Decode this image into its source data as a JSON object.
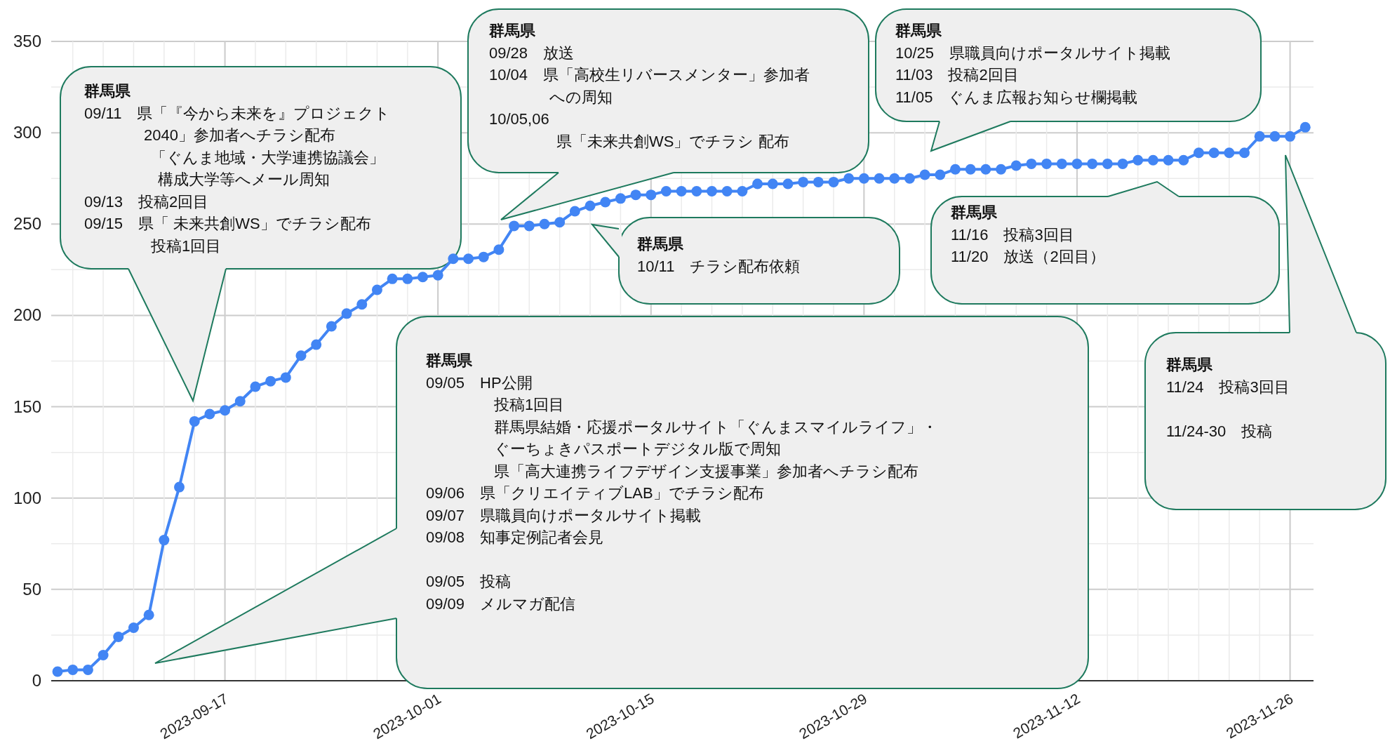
{
  "chart_data": {
    "type": "line",
    "x": [
      "2023-09-06",
      "2023-09-07",
      "2023-09-08",
      "2023-09-09",
      "2023-09-10",
      "2023-09-11",
      "2023-09-12",
      "2023-09-13",
      "2023-09-14",
      "2023-09-15",
      "2023-09-16",
      "2023-09-17",
      "2023-09-18",
      "2023-09-19",
      "2023-09-20",
      "2023-09-21",
      "2023-09-22",
      "2023-09-23",
      "2023-09-24",
      "2023-09-25",
      "2023-09-26",
      "2023-09-27",
      "2023-09-28",
      "2023-09-29",
      "2023-09-30",
      "2023-10-01",
      "2023-10-02",
      "2023-10-03",
      "2023-10-04",
      "2023-10-05",
      "2023-10-06",
      "2023-10-07",
      "2023-10-08",
      "2023-10-09",
      "2023-10-10",
      "2023-10-11",
      "2023-10-12",
      "2023-10-13",
      "2023-10-14",
      "2023-10-15",
      "2023-10-16",
      "2023-10-17",
      "2023-10-18",
      "2023-10-19",
      "2023-10-20",
      "2023-10-21",
      "2023-10-22",
      "2023-10-23",
      "2023-10-24",
      "2023-10-25",
      "2023-10-26",
      "2023-10-27",
      "2023-10-28",
      "2023-10-29",
      "2023-10-30",
      "2023-10-31",
      "2023-11-01",
      "2023-11-02",
      "2023-11-03",
      "2023-11-04",
      "2023-11-05",
      "2023-11-06",
      "2023-11-07",
      "2023-11-08",
      "2023-11-09",
      "2023-11-10",
      "2023-11-11",
      "2023-11-12",
      "2023-11-13",
      "2023-11-14",
      "2023-11-15",
      "2023-11-16",
      "2023-11-17",
      "2023-11-18",
      "2023-11-19",
      "2023-11-20",
      "2023-11-21",
      "2023-11-22",
      "2023-11-23",
      "2023-11-24",
      "2023-11-25",
      "2023-11-26",
      "2023-11-27"
    ],
    "series": [
      {
        "color": "#4285f4",
        "values": [
          5,
          6,
          6,
          14,
          24,
          29,
          36,
          77,
          106,
          142,
          146,
          148,
          153,
          161,
          164,
          166,
          178,
          184,
          194,
          201,
          206,
          214,
          220,
          220,
          221,
          222,
          231,
          231,
          232,
          236,
          249,
          249,
          250,
          251,
          257,
          260,
          262,
          264,
          266,
          266,
          268,
          268,
          268,
          268,
          268,
          268,
          272,
          272,
          272,
          273,
          273,
          273,
          275,
          275,
          275,
          275,
          275,
          277,
          277,
          280,
          280,
          280,
          280,
          282,
          283,
          283,
          283,
          283,
          283,
          283,
          283,
          285,
          285,
          285,
          285,
          289,
          289,
          289,
          289,
          298,
          298,
          298,
          303
        ]
      }
    ],
    "xlim": [
      "2023-09-05T14:00",
      "2023-11-27T13:00"
    ],
    "xticks": [
      "2023-09-17",
      "2023-10-01",
      "2023-10-15",
      "2023-10-29",
      "2023-11-12",
      "2023-11-26"
    ],
    "ylim": [
      0,
      350
    ],
    "yticks": [
      0,
      50,
      100,
      150,
      200,
      250,
      300,
      350
    ],
    "grid": true,
    "marker": "circle",
    "line_style": "solid",
    "annotations": [
      "群馬県",
      "09/11　県「『今から未来を』プロジェクト",
      "2040」参加者へチラシ配布",
      "「ぐんま地域・大学連携協議会」",
      "構成大学等へメール周知",
      "09/13　投稿2回目",
      "09/15　県「 未来共創WS」でチラシ配布",
      "投稿1回目",
      "群馬県",
      "09/28　放送",
      "10/04　県「高校生リバースメンター」参加者",
      "への周知",
      "10/05,06",
      "県「未来共創WS」でチラシ 配布",
      "群馬県",
      "10/25　県職員向けポータルサイト掲載",
      "11/03　投稿2回目",
      "11/05　ぐんま広報お知らせ欄掲載",
      "群馬県",
      "10/11　チラシ配布依頼",
      "群馬県",
      "11/16　投稿3回目",
      "11/20　放送（2回目）",
      "群馬県",
      "09/05　HP公開",
      "投稿1回目",
      "群馬県結婚・応援ポータルサイト「ぐんまスマイルライフ」・",
      "ぐーちょきパスポートデジタル版で周知",
      "県「高大連携ライフデザイン支援事業」参加者へチラシ配布",
      "09/06　県「クリエイティブLAB」でチラシ配布",
      "09/07　県職員向けポータルサイト掲載",
      "09/08　知事定例記者会見",
      "09/05　投稿",
      "09/09　メルマガ配信",
      "群馬県",
      "11/24　投稿3回目",
      "11/24-30　投稿"
    ]
  }
}
